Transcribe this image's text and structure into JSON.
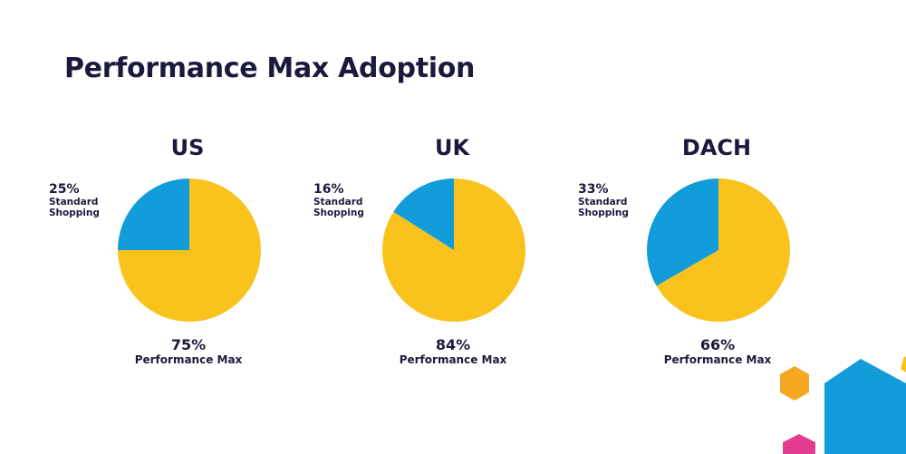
{
  "title": "Performance Max Adoption",
  "colors": {
    "standard": "#129cd9",
    "pmax": "#f9c21d",
    "text": "#1c1a3c",
    "deco_blue": "#129cd9",
    "deco_orange": "#f7a823",
    "deco_pink": "#e33b8f"
  },
  "chart_data": [
    {
      "type": "pie",
      "title": "US",
      "slices": [
        {
          "pct_label": "25%",
          "name_lines": [
            "Standard",
            "Shopping"
          ],
          "value": 25
        },
        {
          "pct_label": "75%",
          "name": "Performance Max",
          "value": 75
        }
      ]
    },
    {
      "type": "pie",
      "title": "UK",
      "slices": [
        {
          "pct_label": "16%",
          "name_lines": [
            "Standard",
            "Shopping"
          ],
          "value": 16
        },
        {
          "pct_label": "84%",
          "name": "Performance Max",
          "value": 84
        }
      ]
    },
    {
      "type": "pie",
      "title": "DACH",
      "slices": [
        {
          "pct_label": "33%",
          "name_lines": [
            "Standard",
            "Shopping"
          ],
          "value": 33
        },
        {
          "pct_label": "66%",
          "name": "Performance Max",
          "value": 66
        }
      ]
    }
  ]
}
